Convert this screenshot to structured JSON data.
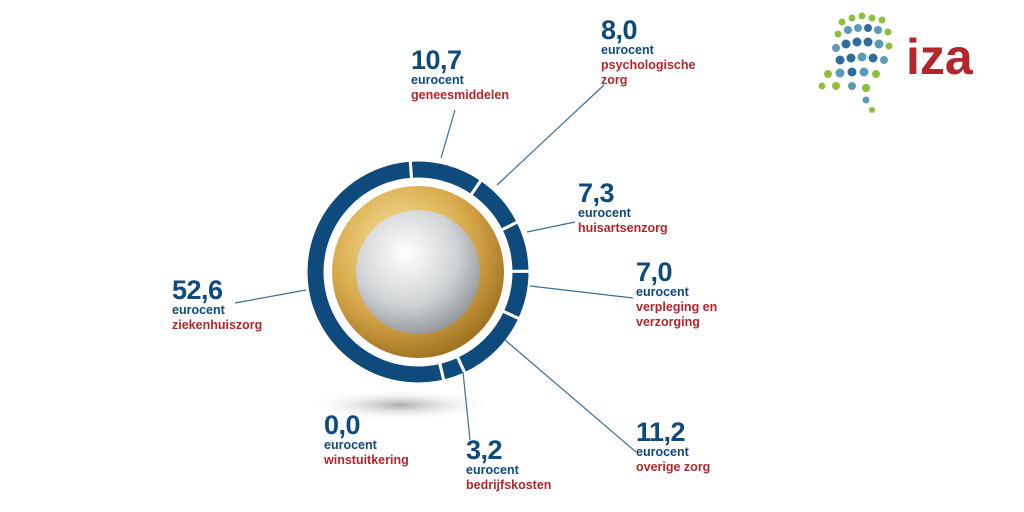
{
  "logo": "iza",
  "chart_data": {
    "type": "pie",
    "unit": "eurocent",
    "color": "#0e4a7c",
    "categories": [
      "geneesmiddelen",
      "psychologische zorg",
      "huisartsenzorg",
      "verpleging en verzorging",
      "overige zorg",
      "bedrijfskosten",
      "winstuitkering",
      "ziekenhuiszorg"
    ],
    "values": [
      10.7,
      8.0,
      7.3,
      7.0,
      11.2,
      3.2,
      0.0,
      52.6
    ],
    "value_labels": [
      "10,7",
      "8,0",
      "7,3",
      "7,0",
      "11,2",
      "3,2",
      "0,0",
      "52,6"
    ]
  }
}
